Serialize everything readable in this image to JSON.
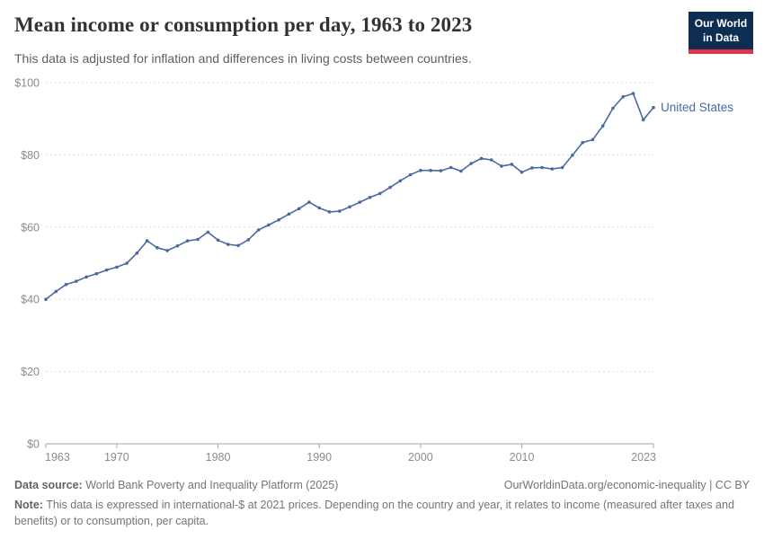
{
  "header": {
    "title": "Mean income or consumption per day, 1963 to 2023",
    "subtitle": "This data is adjusted for inflation and differences in living costs between countries.",
    "logo": {
      "line1": "Our World",
      "line2": "in Data",
      "bg_color": "#0d2d52",
      "accent_color": "#dc354c"
    }
  },
  "chart_data": {
    "type": "line",
    "title": "Mean income or consumption per day, 1963 to 2023",
    "xlabel": "",
    "ylabel": "",
    "xlim": [
      1963,
      2023
    ],
    "ylim": [
      0,
      100
    ],
    "grid": "horizontal-dashed",
    "legend_position": "end-of-line-label",
    "yticks": [
      {
        "value": 0,
        "label": "$0"
      },
      {
        "value": 20,
        "label": "$20"
      },
      {
        "value": 40,
        "label": "$40"
      },
      {
        "value": 60,
        "label": "$60"
      },
      {
        "value": 80,
        "label": "$80"
      },
      {
        "value": 100,
        "label": "$100"
      }
    ],
    "xticks": [
      {
        "value": 1963,
        "label": "1963"
      },
      {
        "value": 1970,
        "label": "1970"
      },
      {
        "value": 1980,
        "label": "1980"
      },
      {
        "value": 1990,
        "label": "1990"
      },
      {
        "value": 2000,
        "label": "2000"
      },
      {
        "value": 2010,
        "label": "2010"
      },
      {
        "value": 2023,
        "label": "2023"
      }
    ],
    "series": [
      {
        "name": "United States",
        "color": "#4a69a2",
        "years": [
          1963,
          1964,
          1965,
          1966,
          1967,
          1968,
          1969,
          1970,
          1971,
          1972,
          1973,
          1974,
          1975,
          1976,
          1977,
          1978,
          1979,
          1980,
          1981,
          1982,
          1983,
          1984,
          1985,
          1986,
          1987,
          1988,
          1989,
          1990,
          1991,
          1992,
          1993,
          1994,
          1995,
          1996,
          1997,
          1998,
          1999,
          2000,
          2001,
          2002,
          2003,
          2004,
          2005,
          2006,
          2007,
          2008,
          2009,
          2010,
          2011,
          2012,
          2013,
          2014,
          2015,
          2016,
          2017,
          2018,
          2019,
          2020,
          2021,
          2022,
          2023
        ],
        "values": [
          40.0,
          42.2,
          44.1,
          45.0,
          46.2,
          47.1,
          48.1,
          48.9,
          50.0,
          52.8,
          56.2,
          54.3,
          53.5,
          54.8,
          56.2,
          56.6,
          58.6,
          56.4,
          55.2,
          54.9,
          56.5,
          59.2,
          60.6,
          62.0,
          63.6,
          65.1,
          66.9,
          65.3,
          64.2,
          64.4,
          65.6,
          66.9,
          68.2,
          69.3,
          71.0,
          72.8,
          74.5,
          75.7,
          75.7,
          75.6,
          76.5,
          75.5,
          77.6,
          79.0,
          78.6,
          76.9,
          77.4,
          75.2,
          76.4,
          76.5,
          76.1,
          76.5,
          79.9,
          83.4,
          84.2,
          88.0,
          92.9,
          96.1,
          97.0,
          89.7,
          93.1
        ]
      }
    ]
  },
  "footer": {
    "source_label": "Data source:",
    "source_text": " World Bank Poverty and Inequality Platform (2025)",
    "url": "OurWorldinData.org/economic-inequality",
    "separator": " | ",
    "license": "CC BY",
    "note_label": "Note:",
    "note_text": " This data is expressed in international-$ at 2021 prices. Depending on the country and year, it relates to income (measured after taxes and benefits) or to consumption, per capita."
  }
}
